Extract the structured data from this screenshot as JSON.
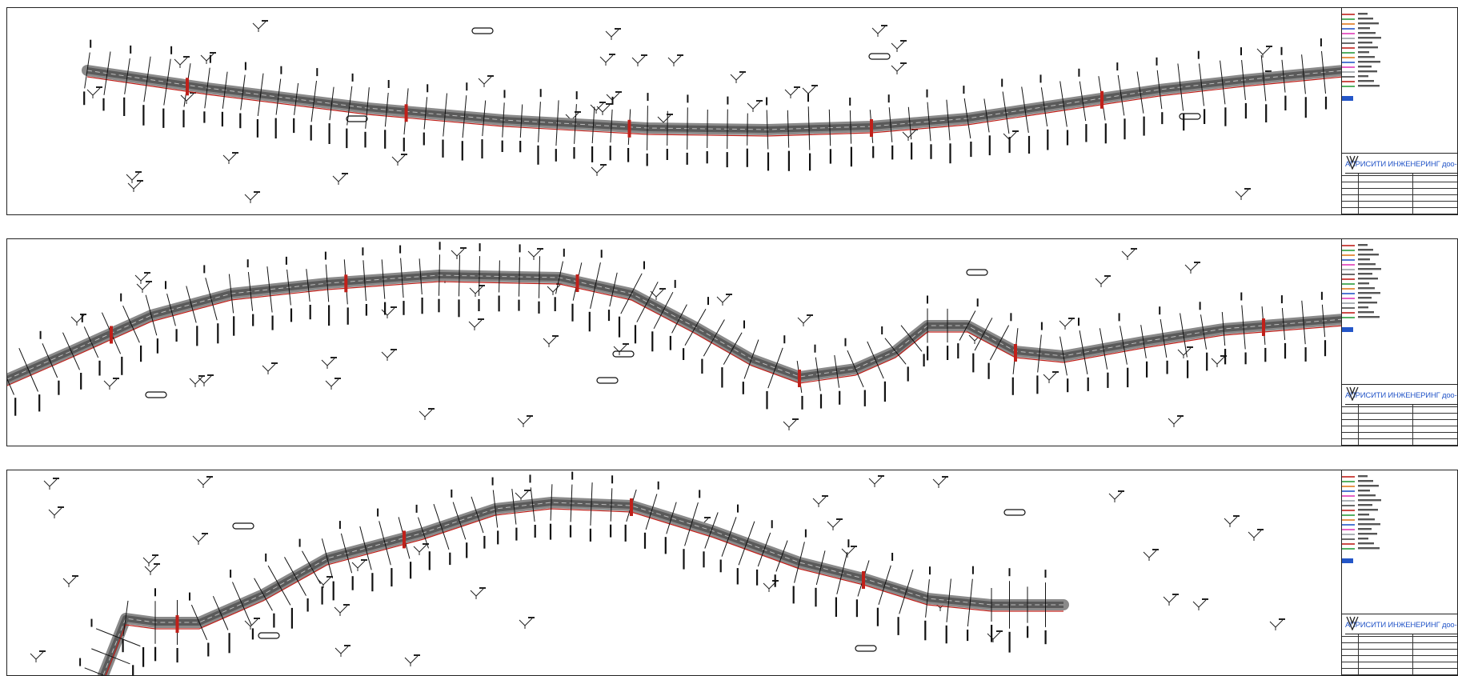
{
  "sheets": [
    {
      "title_block": {
        "company": "АПРИСИТИ ИНЖЕНЕРИНГ доо-скопје"
      },
      "colors": {
        "road": "#8a8a8a",
        "edge": "#c0201a"
      }
    },
    {
      "title_block": {
        "company": "АПРИСИТИ ИНЖЕНЕРИНГ доо-скопје"
      },
      "colors": {
        "road": "#8a8a8a",
        "edge": "#c0201a"
      }
    },
    {
      "title_block": {
        "company": "АПРИСИТИ ИНЖЕНЕРИНГ доо-скопје"
      },
      "colors": {
        "road": "#8a8a8a",
        "edge": "#c0201a"
      }
    }
  ],
  "legend_colors": [
    "#c0201a",
    "#2a9d3c",
    "#e07a1f",
    "#2456c8",
    "#e03bb8",
    "#9aa0a6",
    "#444444"
  ],
  "icons": [
    "north-arrow-icon",
    "company-logo-icon"
  ]
}
